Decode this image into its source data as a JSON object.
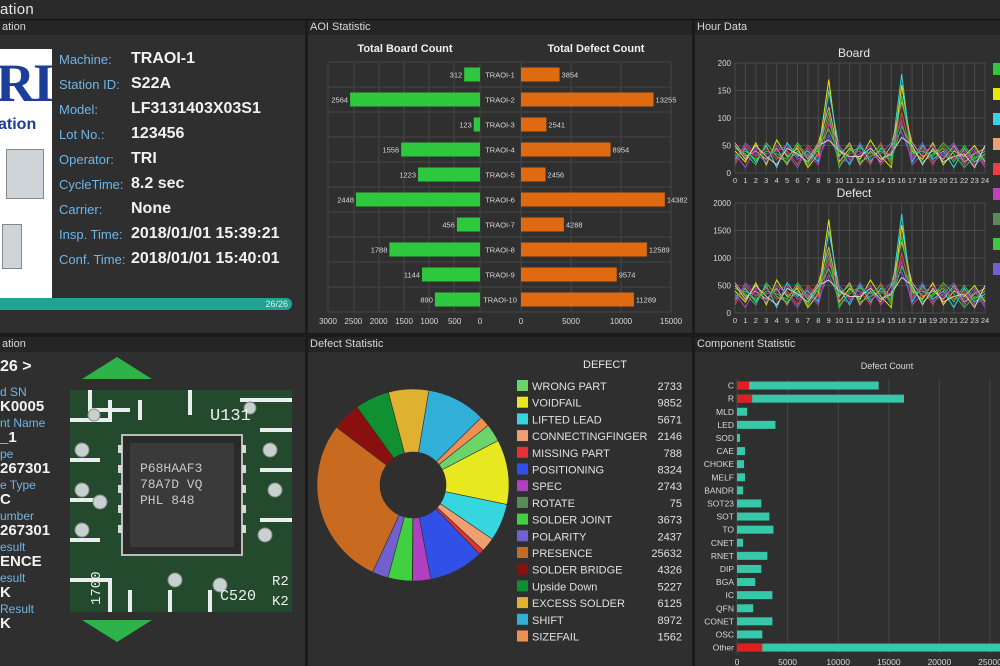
{
  "topbar": {
    "title": "ation"
  },
  "station": {
    "title": "ation",
    "logo_text": "RI",
    "logo_sub": "ation",
    "fields": [
      {
        "label": "Machine:",
        "value": "TRAOI-1"
      },
      {
        "label": "Station ID:",
        "value": "S22A"
      },
      {
        "label": "Model:",
        "value": "LF3131403X03S1"
      },
      {
        "label": "Lot No.:",
        "value": "123456"
      },
      {
        "label": "Operator:",
        "value": "TRI"
      },
      {
        "label": "CycleTime:",
        "value": "8.2 sec"
      },
      {
        "label": "Carrier:",
        "value": "None"
      },
      {
        "label": "Insp. Time:",
        "value": "2018/01/01 15:39:21"
      },
      {
        "label": "Conf. Time:",
        "value": "2018/01/01 15:40:01"
      }
    ],
    "progress_text": "26/26",
    "progress_value": 1.0
  },
  "inspection": {
    "title": "ation",
    "nav": "26  >",
    "rows": [
      {
        "k": "d SN",
        "v": "K0005"
      },
      {
        "k": "nt Name",
        "v": "_1"
      },
      {
        "k": "pe",
        "v": "267301"
      },
      {
        "k": "e Type",
        "v": "C"
      },
      {
        "k": "umber",
        "v": "267301"
      },
      {
        "k": "esult",
        "v": "ENCE"
      },
      {
        "k": "esult",
        "v": "K"
      },
      {
        "k": "Result",
        "v": "K"
      }
    ],
    "chip_text": [
      "U131",
      "P68HAAF3",
      "78A7D VQ",
      "PHL  848",
      "C520",
      "R2",
      "K2",
      "1700"
    ]
  },
  "aoi": {
    "title": "AOI Statistic",
    "left_title": "Total Board Count",
    "right_title": "Total Defect Count",
    "machines": [
      "TRAOI-1",
      "TRAOI-2",
      "TRAOI-3",
      "TRAOI-4",
      "TRAOI-5",
      "TRAOI-6",
      "TRAOI-7",
      "TRAOI-8",
      "TRAOI-9",
      "TRAOI-10"
    ],
    "board": [
      312,
      2564,
      123,
      1556,
      1223,
      2448,
      456,
      1788,
      1144,
      890
    ],
    "defect": [
      3854,
      13255,
      2541,
      8954,
      2456,
      14382,
      4288,
      12589,
      9574,
      11289
    ],
    "left_ticks": [
      "3000",
      "2500",
      "2000",
      "1500",
      "1000",
      "500",
      "0"
    ],
    "right_ticks": [
      "0",
      "5000",
      "10000",
      "15000"
    ],
    "colors": {
      "board": "#2ec83e",
      "defect": "#e06a10"
    }
  },
  "hour": {
    "title": "Hour Data",
    "board_title": "Board",
    "defect_title": "Defect",
    "hours": [
      "0",
      "1",
      "2",
      "3",
      "4",
      "5",
      "6",
      "7",
      "8",
      "9",
      "10",
      "11",
      "12",
      "13",
      "14",
      "15",
      "16",
      "17",
      "18",
      "19",
      "20",
      "21",
      "22",
      "23",
      "24"
    ],
    "board_ticks": [
      "200",
      "150",
      "100",
      "50",
      "0"
    ],
    "defect_ticks": [
      "2000",
      "1500",
      "1000",
      "500",
      "0"
    ],
    "legend_colors": [
      "#2ec83e",
      "#e8e800",
      "#36d6e0",
      "#f0a070",
      "#e84040",
      "#c040c0",
      "#5a8a5a",
      "#40c840",
      "#7060d0"
    ],
    "series_colors": [
      "#e8e800",
      "#36d6e0",
      "#f0a070",
      "#e84040",
      "#c040c0",
      "#40c840",
      "#7060d0",
      "#d0d0d0",
      "#2ec83e"
    ],
    "board_series": [
      [
        40,
        20,
        55,
        15,
        60,
        30,
        45,
        10,
        35,
        170,
        20,
        45,
        25,
        60,
        30,
        10,
        160,
        40,
        25,
        55,
        15,
        40,
        30,
        50,
        20
      ],
      [
        25,
        45,
        20,
        50,
        10,
        55,
        30,
        40,
        20,
        150,
        45,
        15,
        50,
        20,
        45,
        30,
        180,
        20,
        50,
        25,
        40,
        10,
        45,
        20,
        35
      ],
      [
        55,
        30,
        40,
        25,
        45,
        15,
        50,
        25,
        55,
        120,
        30,
        55,
        15,
        40,
        20,
        50,
        130,
        55,
        30,
        40,
        25,
        50,
        20,
        35,
        45
      ],
      [
        15,
        50,
        30,
        45,
        25,
        40,
        15,
        50,
        30,
        100,
        15,
        35,
        40,
        15,
        55,
        20,
        110,
        30,
        45,
        15,
        50,
        25,
        40,
        15,
        30
      ],
      [
        35,
        10,
        45,
        35,
        40,
        50,
        25,
        35,
        15,
        90,
        50,
        25,
        35,
        50,
        15,
        40,
        95,
        15,
        35,
        50,
        30,
        45,
        15,
        40,
        10
      ],
      [
        45,
        35,
        15,
        55,
        30,
        20,
        40,
        15,
        45,
        80,
        35,
        50,
        20,
        30,
        40,
        25,
        85,
        45,
        20,
        35,
        45,
        20,
        50,
        25,
        40
      ],
      [
        20,
        55,
        35,
        20,
        50,
        35,
        10,
        45,
        25,
        70,
        25,
        20,
        55,
        25,
        35,
        55,
        75,
        25,
        55,
        20,
        35,
        55,
        25,
        45,
        15
      ],
      [
        50,
        25,
        50,
        30,
        15,
        45,
        35,
        20,
        50,
        60,
        40,
        30,
        30,
        45,
        25,
        35,
        65,
        50,
        15,
        45,
        20,
        30,
        35,
        10,
        50
      ],
      [
        30,
        40,
        25,
        40,
        35,
        25,
        55,
        30,
        40,
        110,
        10,
        40,
        45,
        35,
        50,
        15,
        140,
        35,
        40,
        30,
        55,
        35,
        10,
        30,
        25
      ]
    ],
    "defect_series": [
      [
        400,
        200,
        550,
        150,
        600,
        300,
        450,
        100,
        350,
        1700,
        200,
        450,
        250,
        600,
        300,
        100,
        1600,
        400,
        250,
        550,
        150,
        400,
        300,
        500,
        200
      ],
      [
        250,
        450,
        200,
        500,
        100,
        550,
        300,
        400,
        200,
        1500,
        450,
        150,
        500,
        200,
        450,
        300,
        1800,
        200,
        500,
        250,
        400,
        100,
        450,
        200,
        350
      ],
      [
        550,
        300,
        400,
        250,
        450,
        150,
        500,
        250,
        550,
        1200,
        300,
        550,
        150,
        400,
        200,
        500,
        1300,
        550,
        300,
        400,
        250,
        500,
        200,
        350,
        450
      ],
      [
        150,
        500,
        300,
        450,
        250,
        400,
        150,
        500,
        300,
        1000,
        150,
        350,
        400,
        150,
        550,
        200,
        1100,
        300,
        450,
        150,
        500,
        250,
        400,
        150,
        300
      ],
      [
        350,
        100,
        450,
        350,
        400,
        500,
        250,
        350,
        150,
        900,
        500,
        250,
        350,
        500,
        150,
        400,
        950,
        150,
        350,
        500,
        300,
        450,
        150,
        400,
        100
      ],
      [
        450,
        350,
        150,
        550,
        300,
        200,
        400,
        150,
        450,
        800,
        350,
        500,
        200,
        300,
        400,
        250,
        850,
        450,
        200,
        350,
        450,
        200,
        500,
        250,
        400
      ],
      [
        200,
        550,
        350,
        200,
        500,
        350,
        100,
        450,
        250,
        700,
        250,
        200,
        550,
        250,
        350,
        550,
        750,
        250,
        550,
        200,
        350,
        550,
        250,
        450,
        150
      ],
      [
        500,
        250,
        500,
        300,
        150,
        450,
        350,
        200,
        500,
        600,
        400,
        300,
        300,
        450,
        250,
        350,
        650,
        500,
        150,
        450,
        200,
        300,
        350,
        100,
        500
      ],
      [
        300,
        400,
        250,
        400,
        350,
        250,
        550,
        300,
        400,
        1100,
        100,
        400,
        450,
        350,
        500,
        150,
        1400,
        350,
        400,
        300,
        550,
        350,
        100,
        300,
        250
      ]
    ]
  },
  "defect": {
    "title": "Defect Statistic",
    "legend_title": "DEFECT",
    "items": [
      {
        "name": "WRONG PART",
        "value": 2733,
        "color": "#6ad36a"
      },
      {
        "name": "VOIDFAIL",
        "value": 9852,
        "color": "#e8e820"
      },
      {
        "name": "LIFTED LEAD",
        "value": 5671,
        "color": "#36d6e0"
      },
      {
        "name": "CONNECTINGFINGER",
        "value": 2146,
        "color": "#f0a070"
      },
      {
        "name": "MISSING PART",
        "value": 788,
        "color": "#e83030"
      },
      {
        "name": "POSITIONING",
        "value": 8324,
        "color": "#3050e8"
      },
      {
        "name": "SPEC",
        "value": 2743,
        "color": "#b040c0"
      },
      {
        "name": "ROTATE",
        "value": 75,
        "color": "#5a8a5a"
      },
      {
        "name": "SOLDER JOINT",
        "value": 3673,
        "color": "#40d040"
      },
      {
        "name": "POLARITY",
        "value": 2437,
        "color": "#7060d0"
      },
      {
        "name": "PRESENCE",
        "value": 25632,
        "color": "#c86a20"
      },
      {
        "name": "SOLDER BRIDGE",
        "value": 4326,
        "color": "#8a1010"
      },
      {
        "name": "Upside Down",
        "value": 5227,
        "color": "#109030"
      },
      {
        "name": "EXCESS SOLDER",
        "value": 6125,
        "color": "#e0b030"
      },
      {
        "name": "SHIFT",
        "value": 8972,
        "color": "#30b0d8"
      },
      {
        "name": "SIZEFAIL",
        "value": 1562,
        "color": "#f09050"
      }
    ]
  },
  "component": {
    "title": "Component Statistic",
    "chart_title": "Defect Count",
    "names": [
      "C",
      "R",
      "MLD",
      "LED",
      "SOD",
      "CAE",
      "CHOKE",
      "MELF",
      "BANDR",
      "SOT23",
      "SOT",
      "TO",
      "CNET",
      "RNET",
      "DIP",
      "BGA",
      "IC",
      "QFN",
      "CONET",
      "OSC",
      "Other"
    ],
    "values": [
      14000,
      16500,
      1000,
      3800,
      300,
      800,
      700,
      800,
      600,
      2400,
      3200,
      3600,
      600,
      3000,
      2400,
      1800,
      3500,
      1600,
      3500,
      2500,
      26000
    ],
    "red_values": [
      1200,
      1500,
      0,
      0,
      0,
      0,
      0,
      0,
      0,
      0,
      0,
      0,
      0,
      0,
      0,
      0,
      0,
      0,
      0,
      0,
      2500
    ],
    "ticks": [
      "0",
      "5000",
      "10000",
      "15000",
      "20000",
      "25000"
    ],
    "colors": {
      "main": "#36c8a8",
      "accent": "#e02020"
    }
  }
}
